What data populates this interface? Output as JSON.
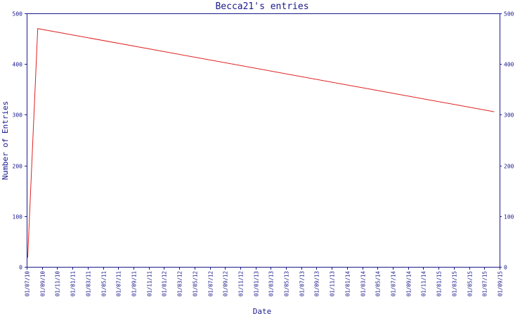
{
  "chart_data": {
    "type": "line",
    "title": "Becca21's entries",
    "xlabel": "Date",
    "ylabel": "Number of Entries",
    "ylim": [
      0,
      500
    ],
    "yticks": [
      0,
      100,
      200,
      300,
      400,
      500
    ],
    "right_axis_ticks": [
      0,
      100,
      200,
      300,
      400,
      500
    ],
    "x_start": "2010-07-01",
    "x_end": "2015-09-01",
    "x_tick_labels": [
      "01/07/10",
      "01/09/10",
      "01/11/10",
      "01/01/11",
      "01/03/11",
      "01/05/11",
      "01/07/11",
      "01/09/11",
      "01/11/11",
      "01/01/12",
      "01/03/12",
      "01/05/12",
      "01/07/12",
      "01/09/12",
      "01/11/12",
      "01/01/13",
      "01/03/13",
      "01/05/13",
      "01/07/13",
      "01/09/13",
      "01/11/13",
      "01/01/14",
      "01/03/14",
      "01/05/14",
      "01/07/14",
      "01/09/14",
      "01/11/14",
      "01/01/15",
      "01/03/15",
      "01/05/15",
      "01/07/15",
      "01/09/15"
    ],
    "grid": false,
    "series": [
      {
        "color": "#e02020",
        "points": [
          {
            "x": "2010-07-05",
            "y": 18
          },
          {
            "x": "2010-08-14",
            "y": 470
          },
          {
            "x": "2015-08-10",
            "y": 306
          }
        ]
      }
    ]
  }
}
